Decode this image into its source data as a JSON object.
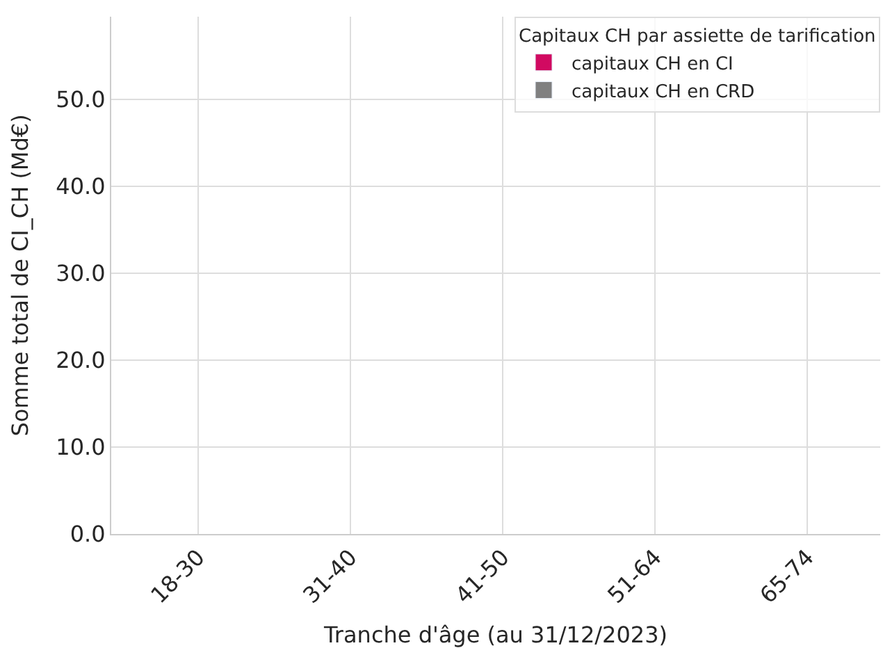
{
  "chart_data": {
    "type": "bar",
    "xlabel": "Tranche d'âge (au 31/12/2023)",
    "ylabel": "Somme total de CI_CH (Md€)",
    "legend_title": "Capitaux CH par assiette de tarification",
    "categories": [
      "18-30",
      "31-40",
      "41-50",
      "51-64",
      "65-74"
    ],
    "series": [
      {
        "name": "capitaux CH en CI",
        "color": "#d10a61",
        "values": [
          null,
          null,
          null,
          null,
          null
        ]
      },
      {
        "name": "capitaux CH en CRD",
        "color": "#808080",
        "values": [
          null,
          null,
          null,
          null,
          null
        ]
      }
    ],
    "ylim": [
      0,
      59.5
    ],
    "yticks": [
      {
        "value": 0,
        "label": "0.0"
      },
      {
        "value": 10,
        "label": "10.0"
      },
      {
        "value": 20,
        "label": "20.0"
      },
      {
        "value": 30,
        "label": "30.0"
      },
      {
        "value": 40,
        "label": "40.0"
      },
      {
        "value": 50,
        "label": "50.0"
      }
    ],
    "grid": true,
    "legend": "top right"
  }
}
